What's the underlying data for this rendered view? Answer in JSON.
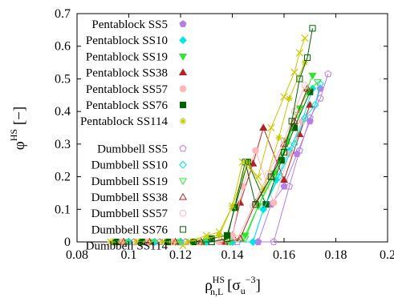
{
  "chart_data": {
    "type": "line",
    "xlabel_main": "ρ",
    "xlabel_sup": "HS",
    "xlabel_sub": "n,L",
    "xlabel_unit_open": " [σ",
    "xlabel_unit_sub": "u",
    "xlabel_unit_sup": "−3",
    "xlabel_unit_close": "]",
    "ylabel_main": "φ",
    "ylabel_sup": "HS",
    "ylabel_unit": " [−]",
    "xlim": [
      0.08,
      0.2
    ],
    "ylim": [
      0,
      0.7
    ],
    "xticks": [
      "0.08",
      "0.1",
      "0.12",
      "0.14",
      "0.16",
      "0.18",
      "0.2"
    ],
    "yticks": [
      "0",
      "0.1",
      "0.2",
      "0.3",
      "0.4",
      "0.5",
      "0.6",
      "0.7"
    ],
    "legend_position": "top-left",
    "series": [
      {
        "name": "Pentablock SS5",
        "color": "#b77fe6",
        "marker": "pentagon",
        "filled": true,
        "x": [
          0.1,
          0.11,
          0.12,
          0.13,
          0.14,
          0.15,
          0.155,
          0.16,
          0.165,
          0.17,
          0.174
        ],
        "y": [
          0,
          0,
          0,
          0,
          0,
          0,
          0.115,
          0.17,
          0.27,
          0.37,
          0.47
        ]
      },
      {
        "name": "Pentablock SS10",
        "color": "#00e5e5",
        "marker": "diamond",
        "filled": true,
        "x": [
          0.1,
          0.11,
          0.12,
          0.13,
          0.14,
          0.148,
          0.152,
          0.157,
          0.162,
          0.167,
          0.171
        ],
        "y": [
          0,
          0,
          0,
          0,
          0,
          0,
          0.1,
          0.19,
          0.28,
          0.37,
          0.47
        ]
      },
      {
        "name": "Pentablock SS19",
        "color": "#2ee62e",
        "marker": "triangle-down",
        "filled": true,
        "x": [
          0.098,
          0.108,
          0.118,
          0.128,
          0.138,
          0.145,
          0.15,
          0.156,
          0.161,
          0.166,
          0.171
        ],
        "y": [
          0,
          0,
          0,
          0,
          0,
          0.02,
          0.11,
          0.21,
          0.31,
          0.41,
          0.51
        ]
      },
      {
        "name": "Pentablock SS38",
        "color": "#b22222",
        "marker": "triangle-up",
        "filled": true,
        "x": [
          0.098,
          0.108,
          0.118,
          0.128,
          0.136,
          0.14,
          0.143,
          0.148,
          0.152,
          0.16,
          0.166,
          0.17
        ],
        "y": [
          0,
          0,
          0,
          0,
          0,
          0.02,
          0.12,
          0.24,
          0.35,
          0.19,
          0.33,
          0.42
        ]
      },
      {
        "name": "Pentablock SS57",
        "color": "#ffb6b6",
        "marker": "circle",
        "filled": true,
        "x": [
          0.097,
          0.107,
          0.117,
          0.127,
          0.135,
          0.14,
          0.144,
          0.149,
          0.156,
          0.162,
          0.167
        ],
        "y": [
          0,
          0,
          0,
          0,
          0,
          0.02,
          0.17,
          0.28,
          0.12,
          0.27,
          0.37
        ]
      },
      {
        "name": "Pentablock SS76",
        "color": "#006400",
        "marker": "square",
        "filled": true,
        "x": [
          0.095,
          0.105,
          0.115,
          0.125,
          0.132,
          0.138,
          0.141,
          0.146,
          0.153,
          0.159,
          0.164,
          0.17
        ],
        "y": [
          0,
          0,
          0,
          0,
          0.01,
          0.02,
          0.105,
          0.245,
          0.115,
          0.25,
          0.35,
          0.46
        ]
      },
      {
        "name": "Pentablock SS114",
        "color": "#c8c800",
        "marker": "asterisk",
        "filled": true,
        "x": [
          0.093,
          0.103,
          0.113,
          0.123,
          0.13,
          0.135,
          0.14,
          0.146,
          0.152,
          0.158,
          0.162,
          0.168
        ],
        "y": [
          0,
          0,
          0,
          0,
          0.01,
          0.02,
          0.11,
          0.245,
          0.16,
          0.32,
          0.44,
          0.55
        ]
      },
      {
        "name": "Dumbbell SS5",
        "color": "#b77fe6",
        "marker": "pentagon",
        "filled": false,
        "x": [
          0.102,
          0.112,
          0.122,
          0.132,
          0.142,
          0.15,
          0.156,
          0.162,
          0.166,
          0.17,
          0.174,
          0.177
        ],
        "y": [
          0,
          0,
          0,
          0,
          0,
          0,
          0,
          0.17,
          0.28,
          0.38,
          0.44,
          0.515
        ]
      },
      {
        "name": "Dumbbell SS10",
        "color": "#00e5e5",
        "marker": "diamond",
        "filled": false,
        "x": [
          0.1,
          0.11,
          0.12,
          0.13,
          0.14,
          0.148,
          0.152,
          0.158,
          0.164,
          0.168,
          0.172,
          0.174
        ],
        "y": [
          0,
          0,
          0,
          0,
          0,
          0,
          0.1,
          0.2,
          0.3,
          0.38,
          0.42,
          0.485
        ]
      },
      {
        "name": "Dumbbell SS19",
        "color": "#2ee62e",
        "marker": "triangle-down",
        "filled": false,
        "x": [
          0.099,
          0.109,
          0.119,
          0.129,
          0.139,
          0.145,
          0.15,
          0.156,
          0.161,
          0.165,
          0.169,
          0.173
        ],
        "y": [
          0,
          0,
          0,
          0,
          0,
          0.01,
          0.11,
          0.2,
          0.3,
          0.39,
          0.46,
          0.49
        ]
      },
      {
        "name": "Dumbbell SS38",
        "color": "#b22222",
        "marker": "triangle-up",
        "filled": false,
        "x": [
          0.098,
          0.108,
          0.118,
          0.128,
          0.137,
          0.143,
          0.149,
          0.155,
          0.16,
          0.164,
          0.169
        ],
        "y": [
          0,
          0,
          0,
          0,
          0,
          0.01,
          0.12,
          0.2,
          0.3,
          0.37,
          0.47
        ]
      },
      {
        "name": "Dumbbell SS57",
        "color": "#ffb6b6",
        "marker": "circle",
        "filled": false,
        "x": [
          0.097,
          0.107,
          0.117,
          0.127,
          0.135,
          0.142,
          0.148,
          0.154,
          0.16,
          0.164,
          0.168
        ],
        "y": [
          0,
          0,
          0,
          0,
          0,
          0.01,
          0.11,
          0.21,
          0.31,
          0.4,
          0.48
        ]
      },
      {
        "name": "Dumbbell SS76",
        "color": "#006400",
        "marker": "square",
        "filled": false,
        "x": [
          0.095,
          0.105,
          0.115,
          0.125,
          0.132,
          0.138,
          0.145,
          0.149,
          0.155,
          0.16,
          0.163,
          0.166,
          0.169,
          0.171
        ],
        "y": [
          0,
          0,
          0,
          0,
          0,
          0.01,
          0.245,
          0.115,
          0.2,
          0.275,
          0.37,
          0.5,
          0.565,
          0.655
        ]
      },
      {
        "name": "Dumbbell SS114",
        "color": "#c8c800",
        "marker": "cross",
        "filled": false,
        "x": [
          0.093,
          0.103,
          0.113,
          0.123,
          0.13,
          0.135,
          0.14,
          0.144,
          0.15,
          0.155,
          0.16,
          0.164,
          0.166,
          0.168
        ],
        "y": [
          0,
          0,
          0,
          0,
          0.02,
          0.03,
          0.11,
          0.245,
          0.2,
          0.35,
          0.445,
          0.52,
          0.58,
          0.625
        ]
      }
    ]
  }
}
